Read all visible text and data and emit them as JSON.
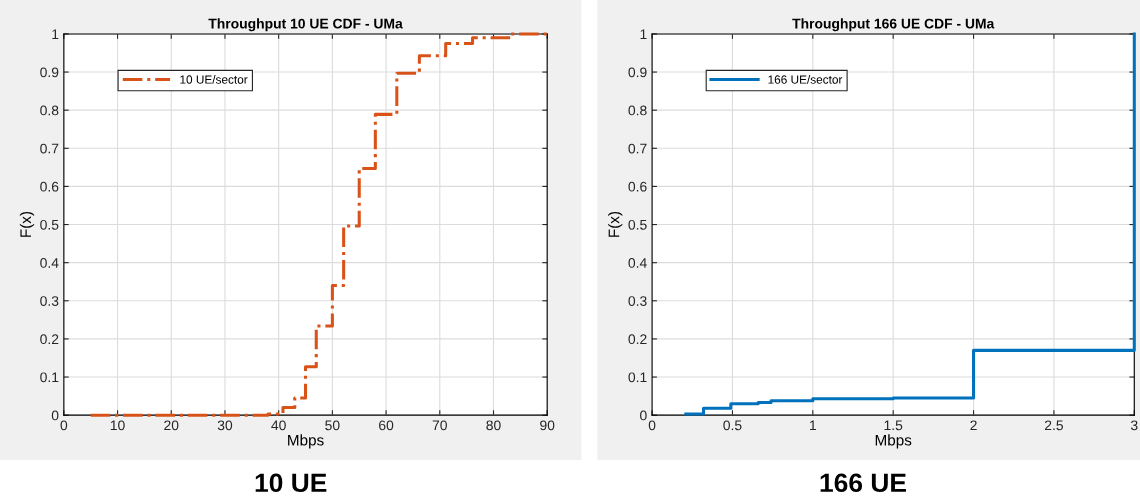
{
  "chart_data": [
    {
      "type": "step",
      "title": "Throughput 10 UE CDF - UMa",
      "xlabel": "Mbps",
      "ylabel": "F(x)",
      "series": [
        {
          "name": "10 UE/sector",
          "color": "#d95319",
          "line_style": "dashdot",
          "x": [
            5,
            38,
            40.8,
            43,
            45,
            47,
            50,
            52.1,
            55,
            58,
            62,
            66.2,
            71.1,
            76.1,
            83.2,
            90
          ],
          "values": [
            0,
            0.003,
            0.02,
            0.045,
            0.127,
            0.234,
            0.34,
            0.496,
            0.647,
            0.789,
            0.897,
            0.943,
            0.975,
            0.99,
            1,
            1
          ]
        }
      ],
      "xlim": [
        0,
        90
      ],
      "xticks": [
        0,
        10,
        20,
        30,
        40,
        50,
        60,
        70,
        80,
        90
      ],
      "ylim": [
        0,
        1
      ],
      "yticks": [
        0,
        0.1,
        0.2,
        0.3,
        0.4,
        0.5,
        0.6,
        0.7,
        0.8,
        0.9,
        1
      ],
      "grid": true,
      "legend": "top left",
      "annotations": [
        "10 UE"
      ]
    },
    {
      "type": "step",
      "title": "Throughput 166 UE CDF - UMa",
      "xlabel": "Mbps",
      "ylabel": "F(x)",
      "series": [
        {
          "name": "166 UE/sector",
          "color": "#0072bd",
          "line_style": "solid",
          "x": [
            0.21,
            0.32,
            0.49,
            0.66,
            0.74,
            1.0,
            1.5,
            2.0,
            3.0
          ],
          "values": [
            0.003,
            0.018,
            0.03,
            0.033,
            0.038,
            0.043,
            0.045,
            0.17,
            1
          ]
        }
      ],
      "xlim": [
        0,
        3
      ],
      "xticks": [
        0,
        0.5,
        1,
        1.5,
        2,
        2.5,
        3
      ],
      "ylim": [
        0,
        1
      ],
      "yticks": [
        0,
        0.1,
        0.2,
        0.3,
        0.4,
        0.5,
        0.6,
        0.7,
        0.8,
        0.9,
        1
      ],
      "grid": true,
      "legend": "top left",
      "annotations": [
        "166 UE"
      ]
    }
  ]
}
